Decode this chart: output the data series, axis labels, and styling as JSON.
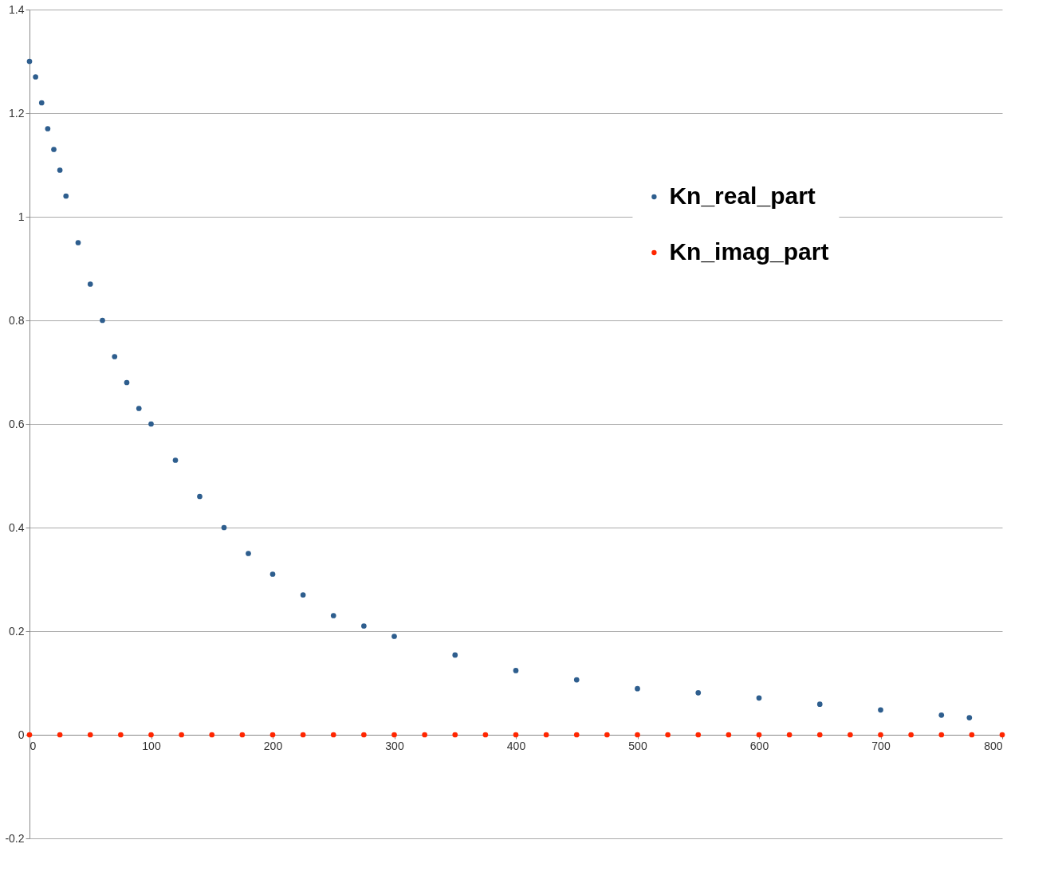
{
  "chart_data": {
    "type": "scatter",
    "series": [
      {
        "name": "Kn_real_part",
        "color": "#2e5e8e",
        "x": [
          0,
          5,
          10,
          15,
          20,
          25,
          30,
          40,
          50,
          60,
          70,
          80,
          90,
          100,
          120,
          140,
          160,
          180,
          200,
          225,
          250,
          275,
          300,
          350,
          400,
          450,
          500,
          550,
          600,
          650,
          700,
          750,
          773
        ],
        "values": [
          1.3,
          1.27,
          1.22,
          1.17,
          1.13,
          1.09,
          1.04,
          0.95,
          0.87,
          0.8,
          0.73,
          0.68,
          0.63,
          0.6,
          0.53,
          0.46,
          0.4,
          0.35,
          0.31,
          0.27,
          0.23,
          0.21,
          0.19,
          0.154,
          0.124,
          0.106,
          0.089,
          0.081,
          0.071,
          0.059,
          0.048,
          0.038,
          0.033
        ]
      },
      {
        "name": "Kn_imag_part",
        "color": "#ff2600",
        "x": [
          0,
          25,
          50,
          75,
          100,
          125,
          150,
          175,
          200,
          225,
          250,
          275,
          300,
          325,
          350,
          375,
          400,
          425,
          450,
          475,
          500,
          525,
          550,
          575,
          600,
          625,
          650,
          675,
          700,
          725,
          750,
          775,
          800
        ],
        "values": [
          0,
          0,
          0,
          0,
          0,
          0,
          0,
          0,
          0,
          0,
          0,
          0,
          0,
          0,
          0,
          0,
          0,
          0,
          0,
          0,
          0,
          0,
          0,
          0,
          0,
          0,
          0,
          0,
          0,
          0,
          0,
          0,
          0
        ]
      }
    ],
    "xlim": [
      0,
      800
    ],
    "xticks": [
      0,
      100,
      200,
      300,
      400,
      500,
      600,
      700,
      800
    ],
    "ylim": [
      -0.2,
      1.4
    ],
    "yticks": [
      -0.2,
      0,
      0.2,
      0.4,
      0.6,
      0.8,
      1,
      1.2,
      1.4
    ],
    "grid": "y",
    "legend": "right",
    "marker": "circle"
  }
}
